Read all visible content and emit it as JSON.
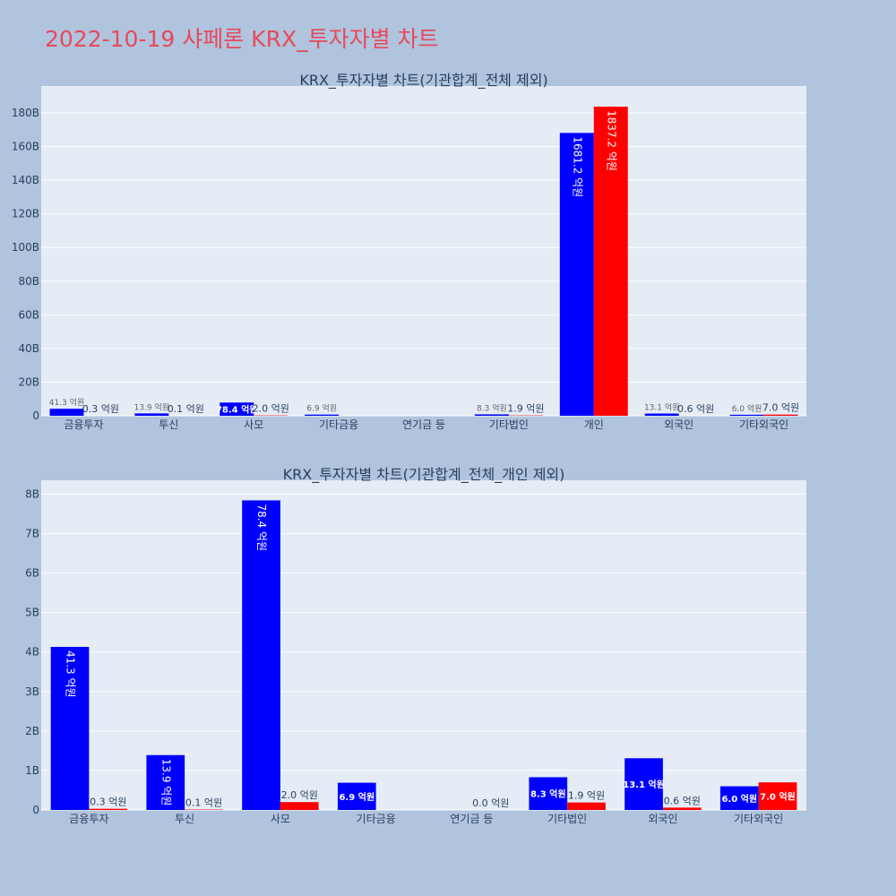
{
  "page": {
    "title": "2022-10-19 샤페론 KRX_투자자별 차트"
  },
  "colors": {
    "background": "#b0c4de",
    "plot_bg": "#e5ecf6",
    "grid": "#ffffff",
    "title": "#e8495a",
    "buy": "#0000ff",
    "sell": "#ff0000",
    "text": "#2a3f5f"
  },
  "chart_data": [
    {
      "type": "bar",
      "title": "KRX_투자자별 차트(기관합계_전체 제외)",
      "categories": [
        "금융투자",
        "투신",
        "사모",
        "기타금융",
        "연기금 등",
        "기타법인",
        "개인",
        "외국인",
        "기타외국인"
      ],
      "series": [
        {
          "color": "#0000ff",
          "values": [
            4.13,
            1.39,
            7.84,
            0.69,
            0,
            0.83,
            168.12,
            1.31,
            0.6
          ],
          "labels": [
            "41.3 억원",
            "13.9 억원",
            "78.4 억원",
            "6.9 억원",
            "",
            "8.3 억원",
            "1681.2 억원",
            "13.1 억원",
            "6.0 억원"
          ]
        },
        {
          "color": "#ff0000",
          "values": [
            0.03,
            0.01,
            0.2,
            0,
            0,
            0.19,
            183.72,
            0.06,
            0.7
          ],
          "labels": [
            "0.3 억원",
            "0.1 억원",
            "2.0 억원",
            "",
            "",
            "1.9 억원",
            "1837.2 억원",
            "0.6 억원",
            "7.0 억원"
          ]
        }
      ],
      "ylim": [
        0,
        196
      ],
      "yticks": [
        0,
        20,
        40,
        60,
        80,
        100,
        120,
        140,
        160,
        180
      ],
      "yticklabels": [
        "0",
        "20B",
        "40B",
        "60B",
        "80B",
        "100B",
        "120B",
        "140B",
        "160B",
        "180B"
      ],
      "grid": true
    },
    {
      "type": "bar",
      "title": "KRX_투자자별 차트(기관합계_전체_개인 제외)",
      "categories": [
        "금융투자",
        "투신",
        "사모",
        "기타금융",
        "연기금 등",
        "기타법인",
        "외국인",
        "기타외국인"
      ],
      "series": [
        {
          "color": "#0000ff",
          "values": [
            4.13,
            1.39,
            7.84,
            0.69,
            0,
            0.83,
            1.31,
            0.6
          ],
          "labels": [
            "41.3 억원",
            "13.9 억원",
            "78.4 억원",
            "6.9 억원",
            "",
            "8.3 억원",
            "13.1 억원",
            "6.0 억원"
          ]
        },
        {
          "color": "#ff0000",
          "values": [
            0.03,
            0.01,
            0.2,
            0,
            0,
            0.19,
            0.06,
            0.7
          ],
          "labels": [
            "0.3 억원",
            "0.1 억원",
            "2.0 억원",
            "",
            "0.0 억원",
            "1.9 억원",
            "0.6 억원",
            "7.0 억원"
          ]
        }
      ],
      "ylim": [
        0,
        8.35
      ],
      "yticks": [
        0,
        1,
        2,
        3,
        4,
        5,
        6,
        7,
        8
      ],
      "yticklabels": [
        "0",
        "1B",
        "2B",
        "3B",
        "4B",
        "5B",
        "6B",
        "7B",
        "8B"
      ],
      "grid": true
    }
  ]
}
